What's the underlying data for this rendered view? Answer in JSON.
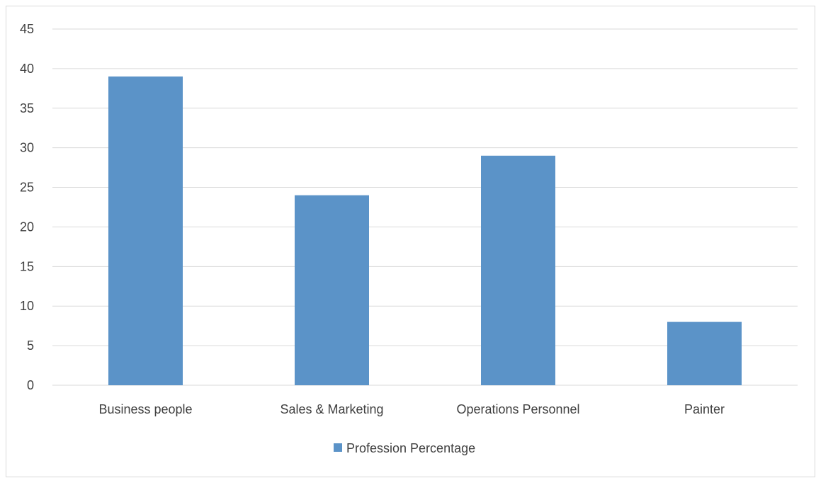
{
  "chart_data": {
    "type": "bar",
    "categories": [
      "Business people",
      "Sales & Marketing",
      "Operations Personnel",
      "Painter"
    ],
    "series": [
      {
        "name": "Profession Percentage",
        "values": [
          39,
          24,
          29,
          8
        ],
        "color": "#5b93c8"
      }
    ],
    "ylim": [
      0,
      45
    ],
    "y_ticks": [
      0,
      5,
      10,
      15,
      20,
      25,
      30,
      35,
      40,
      45
    ],
    "grid": true,
    "gridline_color": "#d9d9d9",
    "legend_position": "bottom"
  }
}
